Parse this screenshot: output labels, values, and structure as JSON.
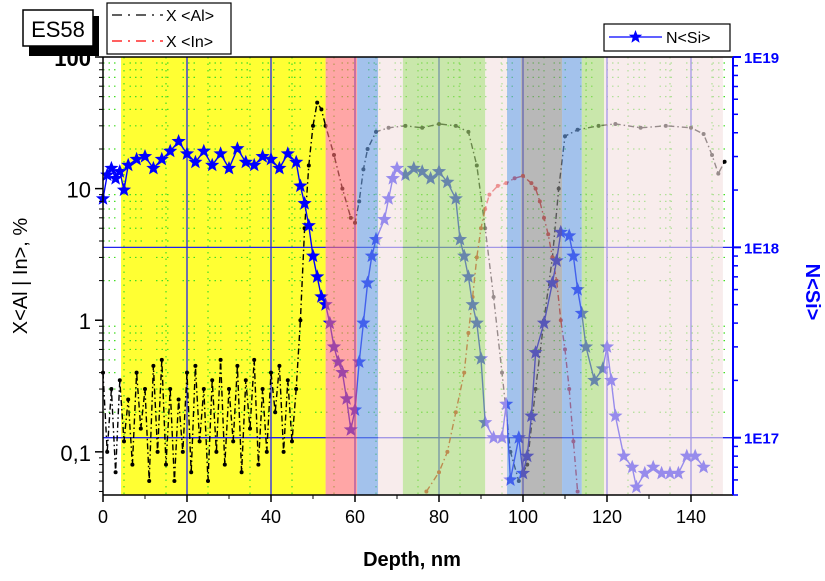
{
  "chart_data": {
    "type": "line",
    "sample_label": "ES58",
    "xlabel": "Depth, nm",
    "ylabel": "X<Al | In>, %",
    "y2label": "N<Si>",
    "xlim": [
      0,
      150
    ],
    "ylim": [
      0.047,
      100
    ],
    "y2lim": [
      5e+16,
      1e+19
    ],
    "yscale": "log",
    "y2scale": "log",
    "x_ticks": [
      "0",
      "20",
      "40",
      "60",
      "80",
      "100",
      "120",
      "140"
    ],
    "y_ticks": [
      {
        "value": 100,
        "label": "100"
      },
      {
        "value": 10,
        "label": "10"
      },
      {
        "value": 1,
        "label": "1"
      },
      {
        "value": 0.1,
        "label": "0,1"
      }
    ],
    "y2_ticks": [
      {
        "value": 1e+19,
        "label": "1E19"
      },
      {
        "value": 1e+18,
        "label": "1E18"
      },
      {
        "value": 1e+17,
        "label": "1E17"
      }
    ],
    "grid": true,
    "legend_left": [
      "X <Al>",
      "X <In>"
    ],
    "legend_right": [
      "N<Si>"
    ],
    "colors": {
      "al": "#000000",
      "in": "#ff0000",
      "si": "#0000ff",
      "axis2": "#0000ff"
    },
    "regions": [
      {
        "from": 4.3,
        "to": 53,
        "color": "#ffff33"
      },
      {
        "from": 53,
        "to": 60.5,
        "color": "#ff7070"
      },
      {
        "from": 60.5,
        "to": 65.5,
        "color": "#6a9de0"
      },
      {
        "from": 65.5,
        "to": 71.4,
        "color": "#f4e0e0"
      },
      {
        "from": 71.4,
        "to": 91,
        "color": "#a8d878"
      },
      {
        "from": 91,
        "to": 96.2,
        "color": "#f4e0e0"
      },
      {
        "from": 96.2,
        "to": 99.5,
        "color": "#6a9de0"
      },
      {
        "from": 99.5,
        "to": 109.3,
        "color": "#8c8c8c"
      },
      {
        "from": 109.3,
        "to": 114,
        "color": "#6a9de0"
      },
      {
        "from": 114,
        "to": 119.3,
        "color": "#a8d878"
      },
      {
        "from": 119.3,
        "to": 147.6,
        "color": "#f4e0e0"
      }
    ],
    "series": [
      {
        "name": "X <Al>",
        "axis": "left",
        "points": [
          [
            0,
            0.4
          ],
          [
            1,
            0.1
          ],
          [
            2,
            0.3
          ],
          [
            3,
            0.07
          ],
          [
            4,
            0.35
          ],
          [
            5,
            0.12
          ],
          [
            6,
            0.25
          ],
          [
            7,
            0.08
          ],
          [
            8,
            0.4
          ],
          [
            9,
            0.15
          ],
          [
            10,
            0.3
          ],
          [
            11,
            0.06
          ],
          [
            12,
            0.45
          ],
          [
            13,
            0.1
          ],
          [
            14,
            0.5
          ],
          [
            15,
            0.08
          ],
          [
            16,
            0.3
          ],
          [
            17,
            0.06
          ],
          [
            18,
            0.25
          ],
          [
            19,
            0.1
          ],
          [
            20,
            0.4
          ],
          [
            21,
            0.07
          ],
          [
            22,
            0.45
          ],
          [
            23,
            0.12
          ],
          [
            24,
            0.3
          ],
          [
            25,
            0.06
          ],
          [
            26,
            0.35
          ],
          [
            27,
            0.1
          ],
          [
            28,
            0.5
          ],
          [
            29,
            0.08
          ],
          [
            30,
            0.3
          ],
          [
            31,
            0.12
          ],
          [
            32,
            0.45
          ],
          [
            33,
            0.07
          ],
          [
            34,
            0.35
          ],
          [
            35,
            0.15
          ],
          [
            36,
            0.5
          ],
          [
            37,
            0.08
          ],
          [
            38,
            0.3
          ],
          [
            39,
            0.1
          ],
          [
            40,
            0.4
          ],
          [
            41,
            0.2
          ],
          [
            42,
            0.45
          ],
          [
            43,
            0.1
          ],
          [
            44,
            0.35
          ],
          [
            45,
            0.12
          ],
          [
            46,
            0.3
          ],
          [
            47,
            1
          ],
          [
            48,
            5
          ],
          [
            49,
            15
          ],
          [
            50,
            30
          ],
          [
            51,
            45
          ],
          [
            52,
            40
          ],
          [
            53,
            30
          ],
          [
            55,
            18
          ],
          [
            57,
            10
          ],
          [
            59,
            6
          ],
          [
            60,
            5.5
          ],
          [
            61,
            8
          ],
          [
            62,
            14
          ],
          [
            63,
            20
          ],
          [
            65,
            27
          ],
          [
            68,
            29
          ],
          [
            72,
            30
          ],
          [
            76,
            29
          ],
          [
            80,
            31
          ],
          [
            84,
            30
          ],
          [
            87,
            27
          ],
          [
            89,
            15
          ],
          [
            91,
            5
          ],
          [
            93,
            1.5
          ],
          [
            95,
            0.4
          ],
          [
            97,
            0.1
          ],
          [
            99,
            0.06
          ],
          [
            101,
            0.08
          ],
          [
            103,
            0.3
          ],
          [
            105,
            1
          ],
          [
            107,
            3
          ],
          [
            108.5,
            10
          ],
          [
            110,
            25
          ],
          [
            113,
            28
          ],
          [
            118,
            30
          ],
          [
            122,
            31
          ],
          [
            128,
            29
          ],
          [
            134,
            30
          ],
          [
            140,
            29
          ],
          [
            143,
            26
          ],
          [
            145,
            18
          ],
          [
            146.5,
            13
          ],
          [
            148,
            16
          ]
        ]
      },
      {
        "name": "X <In>",
        "axis": "left",
        "points": [
          [
            77,
            0.05
          ],
          [
            80,
            0.07
          ],
          [
            82,
            0.1
          ],
          [
            84,
            0.2
          ],
          [
            86,
            0.4
          ],
          [
            87,
            0.8
          ],
          [
            88,
            1.5
          ],
          [
            89,
            3
          ],
          [
            90,
            5
          ],
          [
            91,
            7
          ],
          [
            92,
            9
          ],
          [
            94,
            10.5
          ],
          [
            96,
            11
          ],
          [
            98,
            12
          ],
          [
            100,
            12.5
          ],
          [
            102,
            11
          ],
          [
            103,
            10
          ],
          [
            104,
            8
          ],
          [
            105,
            6
          ],
          [
            106,
            4.5
          ],
          [
            107,
            3
          ],
          [
            108,
            2
          ],
          [
            109,
            1
          ],
          [
            110,
            0.6
          ],
          [
            111,
            0.3
          ],
          [
            112,
            0.12
          ],
          [
            113,
            0.05
          ]
        ]
      },
      {
        "name": "N<Si>",
        "axis": "right",
        "points": [
          [
            0,
            1.8e+18
          ],
          [
            1,
            2.4e+18
          ],
          [
            2,
            2.6e+18
          ],
          [
            3,
            2.3e+18
          ],
          [
            4,
            2.5e+18
          ],
          [
            5,
            2e+18
          ],
          [
            6,
            2.7e+18
          ],
          [
            8,
            2.9e+18
          ],
          [
            10,
            3e+18
          ],
          [
            12,
            2.6e+18
          ],
          [
            14,
            2.9e+18
          ],
          [
            16,
            3.2e+18
          ],
          [
            18,
            3.6e+18
          ],
          [
            20,
            3.1e+18
          ],
          [
            22,
            2.8e+18
          ],
          [
            24,
            3.2e+18
          ],
          [
            26,
            2.7e+18
          ],
          [
            28,
            3.1e+18
          ],
          [
            30,
            2.6e+18
          ],
          [
            32,
            3.3e+18
          ],
          [
            34,
            2.8e+18
          ],
          [
            36,
            2.7e+18
          ],
          [
            38,
            3e+18
          ],
          [
            40,
            2.9e+18
          ],
          [
            42,
            2.6e+18
          ],
          [
            44,
            3.1e+18
          ],
          [
            46,
            2.8e+18
          ],
          [
            47,
            2.1e+18
          ],
          [
            48,
            1.7e+18
          ],
          [
            49,
            1.3e+18
          ],
          [
            50,
            9e+17
          ],
          [
            51,
            7e+17
          ],
          [
            52,
            5.5e+17
          ],
          [
            53,
            5e+17
          ],
          [
            54,
            4e+17
          ],
          [
            55,
            3e+17
          ],
          [
            56,
            2.5e+17
          ],
          [
            57,
            2.2e+17
          ],
          [
            58,
            1.6e+17
          ],
          [
            59,
            1.1e+17
          ],
          [
            60,
            1.4e+17
          ],
          [
            61,
            2.5e+17
          ],
          [
            62,
            4e+17
          ],
          [
            63,
            6.5e+17
          ],
          [
            64,
            9e+17
          ],
          [
            65,
            1.1e+18
          ],
          [
            67,
            1.4e+18
          ],
          [
            68,
            1.8e+18
          ],
          [
            69,
            2.3e+18
          ],
          [
            70,
            2.6e+18
          ],
          [
            72,
            2.4e+18
          ],
          [
            74,
            2.6e+18
          ],
          [
            76,
            2.5e+18
          ],
          [
            78,
            2.3e+18
          ],
          [
            80,
            2.5e+18
          ],
          [
            82,
            2.2e+18
          ],
          [
            84,
            1.8e+18
          ],
          [
            85,
            1.1e+18
          ],
          [
            86,
            9e+17
          ],
          [
            87,
            7e+17
          ],
          [
            88,
            5e+17
          ],
          [
            89,
            4e+17
          ],
          [
            90,
            2.6e+17
          ],
          [
            91,
            1.2e+17
          ],
          [
            93,
            1e+17
          ],
          [
            95,
            1e+17
          ],
          [
            96,
            1.5e+17
          ],
          [
            97,
            6e+16
          ],
          [
            99,
            1e+17
          ],
          [
            100,
            6.5e+16
          ],
          [
            101,
            8e+16
          ],
          [
            102,
            1.3e+17
          ],
          [
            103,
            2.8e+17
          ],
          [
            105,
            4e+17
          ],
          [
            107,
            6.5e+17
          ],
          [
            108,
            8.5e+17
          ],
          [
            109,
            1.2e+18
          ],
          [
            111,
            1.15e+18
          ],
          [
            112,
            9e+17
          ],
          [
            113,
            6e+17
          ],
          [
            114,
            4.5e+17
          ],
          [
            115,
            3e+17
          ],
          [
            117,
            2e+17
          ],
          [
            119,
            2.3e+17
          ],
          [
            120,
            3e+17
          ],
          [
            121,
            2e+17
          ],
          [
            122,
            1.3e+17
          ],
          [
            124,
            8e+16
          ],
          [
            126,
            7e+16
          ],
          [
            127,
            5.5e+16
          ],
          [
            129,
            6.5e+16
          ],
          [
            131,
            7e+16
          ],
          [
            133,
            6.5e+16
          ],
          [
            135,
            6.5e+16
          ],
          [
            137,
            6.5e+16
          ],
          [
            139,
            8e+16
          ],
          [
            141,
            8e+16
          ],
          [
            143,
            7e+16
          ]
        ]
      }
    ]
  }
}
